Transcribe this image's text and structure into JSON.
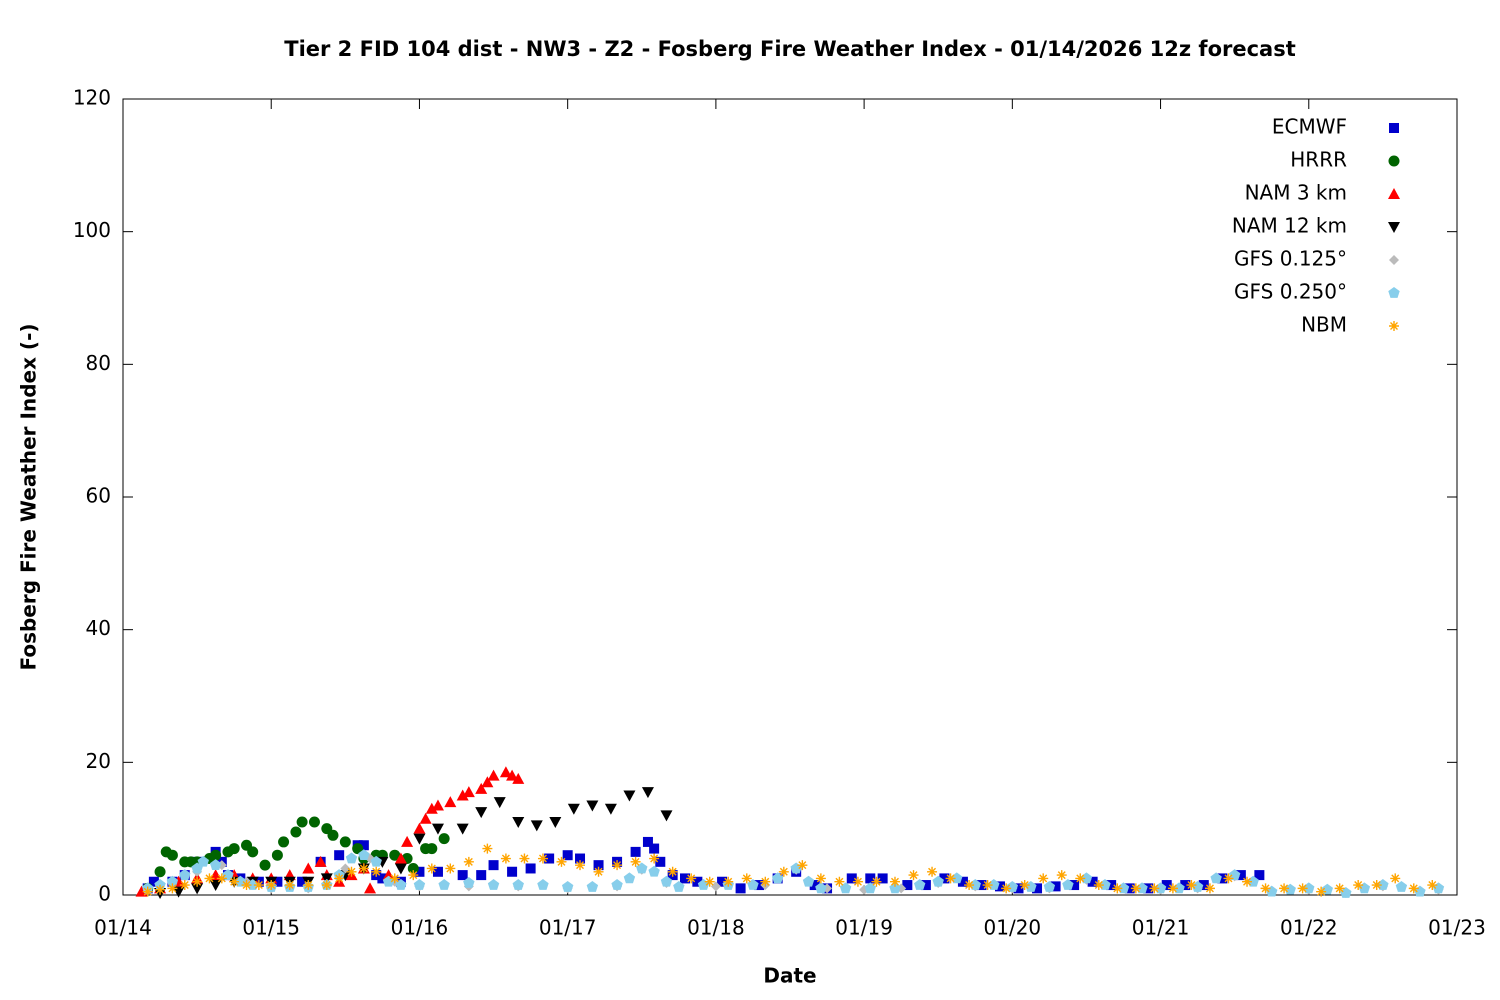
{
  "chart_data": {
    "type": "scatter",
    "title": "Tier 2 FID 104 dist - NW3 - Z2 - Fosberg Fire Weather Index - 01/14/2026 12z forecast",
    "x_label": "Date",
    "y_label": "Fosberg Fire Weather Index (-)",
    "xlim": [
      "01/14",
      "01/23"
    ],
    "xticks": [
      "01/14",
      "01/15",
      "01/16",
      "01/17",
      "01/18",
      "01/19",
      "01/20",
      "01/21",
      "01/22",
      "01/23"
    ],
    "ylim": [
      0,
      120
    ],
    "yticks": [
      0,
      20,
      40,
      60,
      80,
      100,
      120
    ],
    "legend": "top-right",
    "series": [
      {
        "name": "ECMWF",
        "color": "#0000cc",
        "marker": "square",
        "x": [
          "01/14 04z",
          "01/14 05z",
          "01/14 08z",
          "01/14 10z",
          "01/14 12z",
          "01/14 15z",
          "01/14 16z",
          "01/14 17z",
          "01/14 19z",
          "01/14 22z",
          "01/15 01z",
          "01/15 05z",
          "01/15 08z",
          "01/15 11z",
          "01/15 14z",
          "01/15 15z",
          "01/15 17z",
          "01/15 18z",
          "01/15 21z",
          "01/16 00z",
          "01/16 03z",
          "01/16 07z",
          "01/16 10z",
          "01/16 12z",
          "01/16 15z",
          "01/16 18z",
          "01/16 21z",
          "01/17 00z",
          "01/17 02z",
          "01/17 05z",
          "01/17 08z",
          "01/17 11z",
          "01/17 13z",
          "01/17 14z",
          "01/17 15z",
          "01/17 17z",
          "01/17 19z",
          "01/17 21z",
          "01/18 01z",
          "01/18 04z",
          "01/18 07z",
          "01/18 10z",
          "01/18 13z",
          "01/18 16z",
          "01/18 18z",
          "01/18 22z",
          "01/19 01z",
          "01/19 03z",
          "01/19 07z",
          "01/19 10z",
          "01/19 13z",
          "01/19 16z",
          "01/19 19z",
          "01/19 22z",
          "01/20 01z",
          "01/20 04z",
          "01/20 07z",
          "01/20 10z",
          "01/20 13z",
          "01/20 16z",
          "01/20 19z",
          "01/20 22z",
          "01/21 01z",
          "01/21 04z",
          "01/21 07z",
          "01/21 10z",
          "01/21 13z",
          "01/21 16z"
        ],
        "values": [
          1,
          2,
          2,
          3,
          5,
          6.5,
          5,
          3,
          2.5,
          2,
          2,
          2,
          5,
          6,
          7.5,
          7.5,
          3,
          2.5,
          2,
          3.5,
          3.5,
          3,
          3,
          4.5,
          3.5,
          4,
          5.5,
          6,
          5.5,
          4.5,
          5,
          6.5,
          8,
          7,
          5,
          3,
          2.5,
          2,
          2,
          1,
          1.5,
          2.5,
          3.5,
          1.5,
          1,
          2.5,
          2.5,
          2.5,
          1.5,
          1.5,
          2.5,
          2,
          1.5,
          1.3,
          1,
          1,
          1.3,
          1.5,
          2,
          1.5,
          1,
          1,
          1.5,
          1.5,
          1.5,
          2.5,
          3,
          3
        ]
      },
      {
        "name": "HRRR",
        "color": "#006400",
        "marker": "circle",
        "x": [
          "01/14 04z",
          "01/14 06z",
          "01/14 07z",
          "01/14 08z",
          "01/14 10z",
          "01/14 11z",
          "01/14 12z",
          "01/14 14z",
          "01/14 15z",
          "01/14 17z",
          "01/14 18z",
          "01/14 20z",
          "01/14 21z",
          "01/14 23z",
          "01/15 01z",
          "01/15 02z",
          "01/15 04z",
          "01/15 05z",
          "01/15 07z",
          "01/15 09z",
          "01/15 10z",
          "01/15 12z",
          "01/15 14z",
          "01/15 15z",
          "01/15 17z",
          "01/15 18z",
          "01/15 20z",
          "01/15 22z",
          "01/15 23z",
          "01/16 01z",
          "01/16 02z",
          "01/16 04z"
        ],
        "values": [
          1,
          3.5,
          6.5,
          6,
          5,
          5,
          5,
          5.5,
          6,
          6.5,
          7,
          7.5,
          6.5,
          4.5,
          6,
          8,
          9.5,
          11,
          11,
          10,
          9,
          8,
          7,
          5.5,
          6,
          6,
          6,
          5.5,
          4,
          7,
          7,
          8.5
        ]
      },
      {
        "name": "NAM 3 km",
        "color": "#ff0000",
        "marker": "triangle",
        "x": [
          "01/14 03z",
          "01/14 06z",
          "01/14 09z",
          "01/14 12z",
          "01/14 15z",
          "01/14 18z",
          "01/14 21z",
          "01/15 00z",
          "01/15 03z",
          "01/15 06z",
          "01/15 08z",
          "01/15 09z",
          "01/15 11z",
          "01/15 13z",
          "01/15 15z",
          "01/15 16z",
          "01/15 19z",
          "01/15 21z",
          "01/15 22z",
          "01/16 00z",
          "01/16 01z",
          "01/16 02z",
          "01/16 03z",
          "01/16 05z",
          "01/16 07z",
          "01/16 08z",
          "01/16 10z",
          "01/16 11z",
          "01/16 12z",
          "01/16 14z",
          "01/16 15z",
          "01/16 16z"
        ],
        "values": [
          0.5,
          1,
          2,
          2.5,
          3,
          3,
          2.5,
          2.5,
          3,
          4,
          5,
          3,
          2,
          3,
          4,
          1,
          3,
          5.5,
          8,
          10,
          11.5,
          13,
          13.5,
          14,
          15,
          15.5,
          16,
          17,
          18,
          18.5,
          18,
          17.5
        ]
      },
      {
        "name": "NAM 12 km",
        "color": "#000000",
        "marker": "triangle-down",
        "x": [
          "01/14 06z",
          "01/14 09z",
          "01/14 12z",
          "01/14 15z",
          "01/14 18z",
          "01/14 21z",
          "01/15 00z",
          "01/15 03z",
          "01/15 06z",
          "01/15 09z",
          "01/15 12z",
          "01/15 15z",
          "01/15 18z",
          "01/15 21z",
          "01/16 00z",
          "01/16 03z",
          "01/16 07z",
          "01/16 10z",
          "01/16 13z",
          "01/16 16z",
          "01/16 19z",
          "01/16 22z",
          "01/17 01z",
          "01/17 04z",
          "01/17 07z",
          "01/17 10z",
          "01/17 13z",
          "01/17 16z"
        ],
        "values": [
          0.3,
          0.5,
          1,
          1.5,
          2,
          2,
          2,
          2,
          2,
          2.5,
          3,
          4,
          5,
          4,
          8.5,
          10,
          10,
          12.5,
          14,
          11,
          10.5,
          11,
          13,
          13.5,
          13,
          15,
          15.5,
          12
        ]
      },
      {
        "name": "GFS 0.125°",
        "color": "#bbbbbb",
        "marker": "diamond",
        "x": [
          "01/14 04z",
          "01/14 08z",
          "01/14 12z",
          "01/14 16z",
          "01/14 20z",
          "01/15 00z",
          "01/15 06z",
          "01/15 12z",
          "01/15 16z",
          "01/15 20z",
          "01/16 00z",
          "01/16 08z",
          "01/16 16z",
          "01/17 00z",
          "01/17 08z",
          "01/17 12z",
          "01/17 16z",
          "01/18 00z",
          "01/18 08z",
          "01/18 13z",
          "01/18 18z",
          "01/19 00z",
          "01/19 06z",
          "01/19 12z",
          "01/19 18z",
          "01/20 00z",
          "01/20 06z",
          "01/20 12z",
          "01/20 18z",
          "01/21 00z",
          "01/21 06z",
          "01/21 12z",
          "01/21 18z",
          "01/22 00z",
          "01/22 06z",
          "01/22 12z",
          "01/22 18z",
          "01/22 21z"
        ],
        "values": [
          0.8,
          1.8,
          3.5,
          4.5,
          2,
          1,
          1,
          4,
          5.5,
          2,
          1.3,
          1.3,
          1.3,
          1,
          1.3,
          3.8,
          1.8,
          1.3,
          1.5,
          3.8,
          1,
          0.8,
          1,
          1.8,
          1.3,
          1,
          1,
          2.3,
          1,
          0.8,
          1,
          2.8,
          0.5,
          0.8,
          0.3,
          1.3,
          0.5,
          0.8
        ]
      },
      {
        "name": "GFS 0.250°",
        "color": "#87ceeb",
        "marker": "pentagon",
        "x": [
          "01/14 04z",
          "01/14 06z",
          "01/14 08z",
          "01/14 10z",
          "01/14 12z",
          "01/14 13z",
          "01/14 15z",
          "01/14 17z",
          "01/14 19z",
          "01/14 21z",
          "01/15 00z",
          "01/15 03z",
          "01/15 06z",
          "01/15 09z",
          "01/15 11z",
          "01/15 13z",
          "01/15 15z",
          "01/15 17z",
          "01/15 19z",
          "01/15 21z",
          "01/16 00z",
          "01/16 04z",
          "01/16 08z",
          "01/16 12z",
          "01/16 16z",
          "01/16 20z",
          "01/17 00z",
          "01/17 04z",
          "01/17 08z",
          "01/17 10z",
          "01/17 12z",
          "01/17 14z",
          "01/17 16z",
          "01/17 18z",
          "01/17 22z",
          "01/18 02z",
          "01/18 06z",
          "01/18 10z",
          "01/18 13z",
          "01/18 15z",
          "01/18 17z",
          "01/18 21z",
          "01/19 01z",
          "01/19 05z",
          "01/19 09z",
          "01/19 12z",
          "01/19 15z",
          "01/19 18z",
          "01/19 21z",
          "01/20 00z",
          "01/20 03z",
          "01/20 06z",
          "01/20 09z",
          "01/20 12z",
          "01/20 15z",
          "01/20 18z",
          "01/20 21z",
          "01/21 00z",
          "01/21 03z",
          "01/21 06z",
          "01/21 09z",
          "01/21 12z",
          "01/21 15z",
          "01/21 18z",
          "01/21 21z",
          "01/22 00z",
          "01/22 03z",
          "01/22 06z",
          "01/22 09z",
          "01/22 12z",
          "01/22 15z",
          "01/22 18z",
          "01/22 21z"
        ],
        "values": [
          1,
          1.5,
          2,
          3,
          4,
          5,
          4.5,
          3,
          2,
          1.5,
          1.2,
          1.2,
          1.2,
          1.5,
          3,
          5.5,
          6,
          5,
          2,
          1.5,
          1.5,
          1.5,
          1.8,
          1.5,
          1.5,
          1.5,
          1.2,
          1.2,
          1.5,
          2.5,
          4,
          3.5,
          2,
          1.2,
          1.5,
          1.5,
          1.5,
          2.5,
          4,
          2,
          1,
          1,
          1,
          1,
          1.5,
          2,
          2.5,
          1.5,
          1.5,
          1.2,
          1.2,
          1.2,
          1.5,
          2.5,
          1.5,
          1,
          1,
          1,
          1,
          1.2,
          2.5,
          3,
          2,
          0.5,
          0.8,
          1,
          0.8,
          0.3,
          1,
          1.5,
          1.2,
          0.5,
          1
        ]
      },
      {
        "name": "NBM",
        "color": "#ffa500",
        "marker": "asterisk",
        "x": [
          "01/14 04z",
          "01/14 06z",
          "01/14 08z",
          "01/14 10z",
          "01/14 12z",
          "01/14 14z",
          "01/14 16z",
          "01/14 18z",
          "01/14 20z",
          "01/14 22z",
          "01/15 00z",
          "01/15 03z",
          "01/15 06z",
          "01/15 09z",
          "01/15 11z",
          "01/15 13z",
          "01/15 15z",
          "01/15 17z",
          "01/15 20z",
          "01/15 23z",
          "01/16 02z",
          "01/16 05z",
          "01/16 08z",
          "01/16 11z",
          "01/16 14z",
          "01/16 17z",
          "01/16 20z",
          "01/16 23z",
          "01/17 02z",
          "01/17 05z",
          "01/17 08z",
          "01/17 11z",
          "01/17 14z",
          "01/17 17z",
          "01/17 20z",
          "01/17 23z",
          "01/18 02z",
          "01/18 05z",
          "01/18 08z",
          "01/18 11z",
          "01/18 14z",
          "01/18 17z",
          "01/18 20z",
          "01/18 23z",
          "01/19 02z",
          "01/19 05z",
          "01/19 08z",
          "01/19 11z",
          "01/19 14z",
          "01/19 17z",
          "01/19 20z",
          "01/19 23z",
          "01/20 02z",
          "01/20 05z",
          "01/20 08z",
          "01/20 11z",
          "01/20 14z",
          "01/20 17z",
          "01/20 20z",
          "01/20 23z",
          "01/21 02z",
          "01/21 05z",
          "01/21 08z",
          "01/21 11z",
          "01/21 14z",
          "01/21 17z",
          "01/21 20z",
          "01/21 23z",
          "01/22 02z",
          "01/22 05z",
          "01/22 08z",
          "01/22 11z",
          "01/22 14z",
          "01/22 17z",
          "01/22 20z"
        ],
        "values": [
          0.5,
          0.8,
          1,
          1.5,
          2,
          2.5,
          2.5,
          2,
          1.5,
          1.5,
          1.5,
          1.5,
          1.5,
          1.5,
          2.5,
          3.5,
          4,
          3.5,
          2.5,
          3,
          4,
          4,
          5,
          7,
          5.5,
          5.5,
          5.5,
          5,
          4.5,
          3.5,
          4.5,
          5,
          5.5,
          3.5,
          2.5,
          2,
          2,
          2.5,
          2,
          3.5,
          4.5,
          2.5,
          2,
          2,
          2,
          2,
          3,
          3.5,
          2.5,
          1.5,
          1.5,
          1,
          1.5,
          2.5,
          3,
          2.5,
          1.5,
          1,
          1,
          1,
          1,
          1.5,
          1,
          2.5,
          2,
          1,
          1,
          1,
          0.5,
          1,
          1.5,
          1.5,
          2.5,
          1,
          1.5
        ]
      }
    ]
  }
}
